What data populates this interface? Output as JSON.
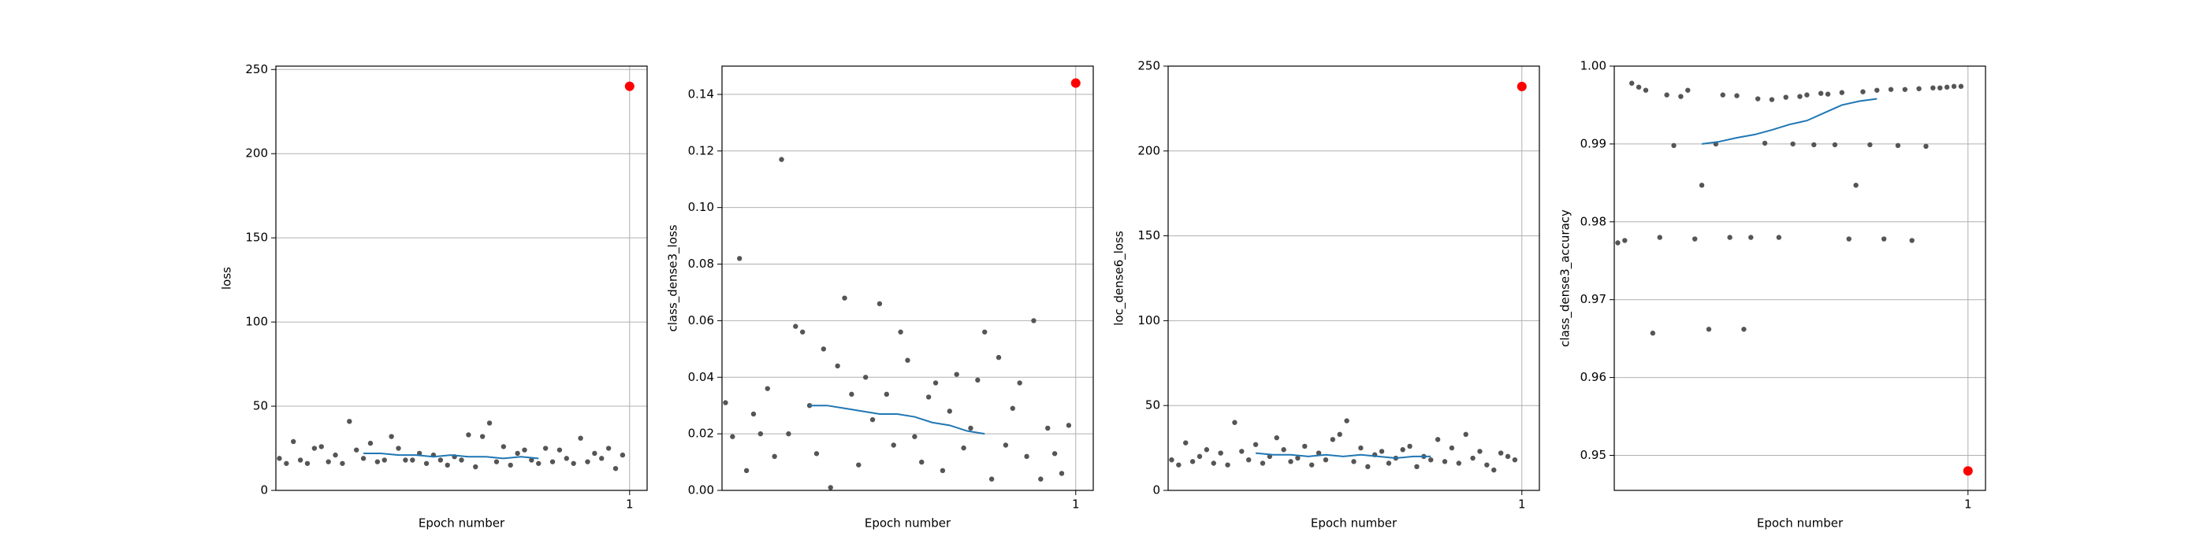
{
  "chart_data": [
    {
      "type": "scatter",
      "xlabel": "Epoch number",
      "ylabel": "loss",
      "xlim": [
        -0.01,
        1.05
      ],
      "ylim": [
        0,
        252
      ],
      "xticks": [
        1
      ],
      "yticks": [
        0,
        50,
        100,
        150,
        200,
        250
      ],
      "grid": true,
      "series": [
        {
          "mode": "markers",
          "color": "#555555",
          "x": [
            0,
            0.02,
            0.04,
            0.06,
            0.08,
            0.1,
            0.12,
            0.14,
            0.16,
            0.18,
            0.2,
            0.22,
            0.24,
            0.26,
            0.28,
            0.3,
            0.32,
            0.34,
            0.36,
            0.38,
            0.4,
            0.42,
            0.44,
            0.46,
            0.48,
            0.5,
            0.52,
            0.54,
            0.56,
            0.58,
            0.6,
            0.62,
            0.64,
            0.66,
            0.68,
            0.7,
            0.72,
            0.74,
            0.76,
            0.78,
            0.8,
            0.82,
            0.84,
            0.86,
            0.88,
            0.9,
            0.92,
            0.94,
            0.96,
            0.98
          ],
          "values": [
            19,
            16,
            29,
            18,
            16,
            25,
            26,
            17,
            21,
            16,
            41,
            24,
            19,
            28,
            17,
            18,
            32,
            25,
            18,
            18,
            22,
            16,
            21,
            18,
            15,
            20,
            18,
            33,
            14,
            32,
            40,
            17,
            26,
            15,
            22,
            24,
            18,
            16,
            25,
            17,
            24,
            19,
            16,
            31,
            17,
            22,
            19,
            25,
            13,
            21
          ]
        },
        {
          "mode": "line",
          "color": "#1f77b4",
          "x": [
            0.24,
            0.29,
            0.34,
            0.39,
            0.44,
            0.49,
            0.54,
            0.59,
            0.64,
            0.69,
            0.74
          ],
          "values": [
            22,
            22,
            21,
            21,
            20,
            21,
            20,
            20,
            19,
            20,
            19
          ]
        },
        {
          "mode": "markers",
          "color": "#ff0000",
          "x": [
            1
          ],
          "values": [
            240
          ]
        }
      ]
    },
    {
      "type": "scatter",
      "xlabel": "Epoch number",
      "ylabel": "class_dense3_loss",
      "xlim": [
        -0.01,
        1.05
      ],
      "ylim": [
        0,
        0.15
      ],
      "xticks": [
        1
      ],
      "yticks": [
        {
          "value": 0,
          "label": "0.00"
        },
        {
          "value": 0.02,
          "label": "0.02"
        },
        {
          "value": 0.04,
          "label": "0.04"
        },
        {
          "value": 0.06,
          "label": "0.06"
        },
        {
          "value": 0.08,
          "label": "0.08"
        },
        {
          "value": 0.1,
          "label": "0.10"
        },
        {
          "value": 0.12,
          "label": "0.12"
        },
        {
          "value": 0.14,
          "label": "0.14"
        }
      ],
      "grid": true,
      "series": [
        {
          "mode": "markers",
          "color": "#555555",
          "x": [
            0,
            0.02,
            0.04,
            0.06,
            0.08,
            0.1,
            0.12,
            0.14,
            0.16,
            0.18,
            0.2,
            0.22,
            0.24,
            0.26,
            0.28,
            0.3,
            0.32,
            0.34,
            0.36,
            0.38,
            0.4,
            0.42,
            0.44,
            0.46,
            0.48,
            0.5,
            0.52,
            0.54,
            0.56,
            0.58,
            0.6,
            0.62,
            0.64,
            0.66,
            0.68,
            0.7,
            0.72,
            0.74,
            0.76,
            0.78,
            0.8,
            0.82,
            0.84,
            0.86,
            0.88,
            0.9,
            0.92,
            0.94,
            0.96,
            0.98
          ],
          "values": [
            0.031,
            0.019,
            0.082,
            0.007,
            0.027,
            0.02,
            0.036,
            0.012,
            0.117,
            0.02,
            0.058,
            0.056,
            0.03,
            0.013,
            0.05,
            0.001,
            0.044,
            0.068,
            0.034,
            0.009,
            0.04,
            0.025,
            0.066,
            0.034,
            0.016,
            0.056,
            0.046,
            0.019,
            0.01,
            0.033,
            0.038,
            0.007,
            0.028,
            0.041,
            0.015,
            0.022,
            0.039,
            0.056,
            0.004,
            0.047,
            0.016,
            0.029,
            0.038,
            0.012,
            0.06,
            0.004,
            0.022,
            0.013,
            0.006,
            0.023
          ]
        },
        {
          "mode": "line",
          "color": "#1f77b4",
          "x": [
            0.24,
            0.29,
            0.34,
            0.39,
            0.44,
            0.49,
            0.54,
            0.59,
            0.64,
            0.69,
            0.74
          ],
          "values": [
            0.03,
            0.03,
            0.029,
            0.028,
            0.027,
            0.027,
            0.026,
            0.024,
            0.023,
            0.021,
            0.02
          ]
        },
        {
          "mode": "markers",
          "color": "#ff0000",
          "x": [
            1
          ],
          "values": [
            0.144
          ]
        }
      ]
    },
    {
      "type": "scatter",
      "xlabel": "Epoch number",
      "ylabel": "loc_dense6_loss",
      "xlim": [
        -0.01,
        1.05
      ],
      "ylim": [
        0,
        250
      ],
      "xticks": [
        1
      ],
      "yticks": [
        0,
        50,
        100,
        150,
        200,
        250
      ],
      "grid": true,
      "series": [
        {
          "mode": "markers",
          "color": "#555555",
          "x": [
            0,
            0.02,
            0.04,
            0.06,
            0.08,
            0.1,
            0.12,
            0.14,
            0.16,
            0.18,
            0.2,
            0.22,
            0.24,
            0.26,
            0.28,
            0.3,
            0.32,
            0.34,
            0.36,
            0.38,
            0.4,
            0.42,
            0.44,
            0.46,
            0.48,
            0.5,
            0.52,
            0.54,
            0.56,
            0.58,
            0.6,
            0.62,
            0.64,
            0.66,
            0.68,
            0.7,
            0.72,
            0.74,
            0.76,
            0.78,
            0.8,
            0.82,
            0.84,
            0.86,
            0.88,
            0.9,
            0.92,
            0.94,
            0.96,
            0.98
          ],
          "values": [
            18,
            15,
            28,
            17,
            20,
            24,
            16,
            22,
            15,
            40,
            23,
            18,
            27,
            16,
            20,
            31,
            24,
            17,
            19,
            26,
            15,
            22,
            18,
            30,
            33,
            41,
            17,
            25,
            14,
            21,
            23,
            16,
            19,
            24,
            26,
            14,
            20,
            18,
            30,
            17,
            25,
            16,
            33,
            19,
            23,
            15,
            12,
            22,
            20,
            18
          ]
        },
        {
          "mode": "line",
          "color": "#1f77b4",
          "x": [
            0.24,
            0.29,
            0.34,
            0.39,
            0.44,
            0.49,
            0.54,
            0.59,
            0.64,
            0.69,
            0.74
          ],
          "values": [
            22,
            21,
            21,
            20,
            21,
            20,
            21,
            20,
            19,
            20,
            20
          ]
        },
        {
          "mode": "markers",
          "color": "#ff0000",
          "x": [
            1
          ],
          "values": [
            238
          ]
        }
      ]
    },
    {
      "type": "scatter",
      "xlabel": "Epoch number",
      "ylabel": "class_dense3_accuracy",
      "xlim": [
        -0.01,
        1.05
      ],
      "ylim": [
        0.9455,
        1.0
      ],
      "xticks": [
        1
      ],
      "yticks": [
        {
          "value": 0.95,
          "label": "0.95"
        },
        {
          "value": 0.96,
          "label": "0.96"
        },
        {
          "value": 0.97,
          "label": "0.97"
        },
        {
          "value": 0.98,
          "label": "0.98"
        },
        {
          "value": 0.99,
          "label": "0.99"
        },
        {
          "value": 1.0,
          "label": "1.00"
        }
      ],
      "grid": true,
      "series": [
        {
          "mode": "markers",
          "color": "#555555",
          "x": [
            0,
            0.02,
            0.04,
            0.06,
            0.08,
            0.1,
            0.12,
            0.14,
            0.16,
            0.18,
            0.2,
            0.22,
            0.24,
            0.26,
            0.28,
            0.3,
            0.32,
            0.34,
            0.36,
            0.38,
            0.4,
            0.42,
            0.44,
            0.46,
            0.48,
            0.5,
            0.52,
            0.54,
            0.56,
            0.58,
            0.6,
            0.62,
            0.64,
            0.66,
            0.68,
            0.7,
            0.72,
            0.74,
            0.76,
            0.78,
            0.8,
            0.82,
            0.84,
            0.86,
            0.88,
            0.9,
            0.92,
            0.94,
            0.96,
            0.98
          ],
          "values": [
            0.9773,
            0.9776,
            0.9978,
            0.9973,
            0.9969,
            0.9657,
            0.978,
            0.9963,
            0.9898,
            0.9961,
            0.9969,
            0.9778,
            0.9847,
            0.9662,
            0.99,
            0.9963,
            0.978,
            0.9962,
            0.9662,
            0.978,
            0.9958,
            0.9901,
            0.9957,
            0.978,
            0.996,
            0.99,
            0.9961,
            0.9963,
            0.9899,
            0.9965,
            0.9964,
            0.9899,
            0.9966,
            0.9778,
            0.9847,
            0.9967,
            0.9899,
            0.9969,
            0.9778,
            0.997,
            0.9898,
            0.997,
            0.9776,
            0.9971,
            0.9897,
            0.9972,
            0.9972,
            0.9973,
            0.9974,
            0.9974
          ]
        },
        {
          "mode": "line",
          "color": "#1f77b4",
          "x": [
            0.24,
            0.29,
            0.34,
            0.39,
            0.44,
            0.49,
            0.54,
            0.59,
            0.64,
            0.69,
            0.74
          ],
          "values": [
            0.99,
            0.9903,
            0.9908,
            0.9912,
            0.9918,
            0.9925,
            0.993,
            0.994,
            0.995,
            0.9955,
            0.9958
          ]
        },
        {
          "mode": "markers",
          "color": "#ff0000",
          "x": [
            1
          ],
          "values": [
            0.948
          ]
        }
      ]
    }
  ]
}
